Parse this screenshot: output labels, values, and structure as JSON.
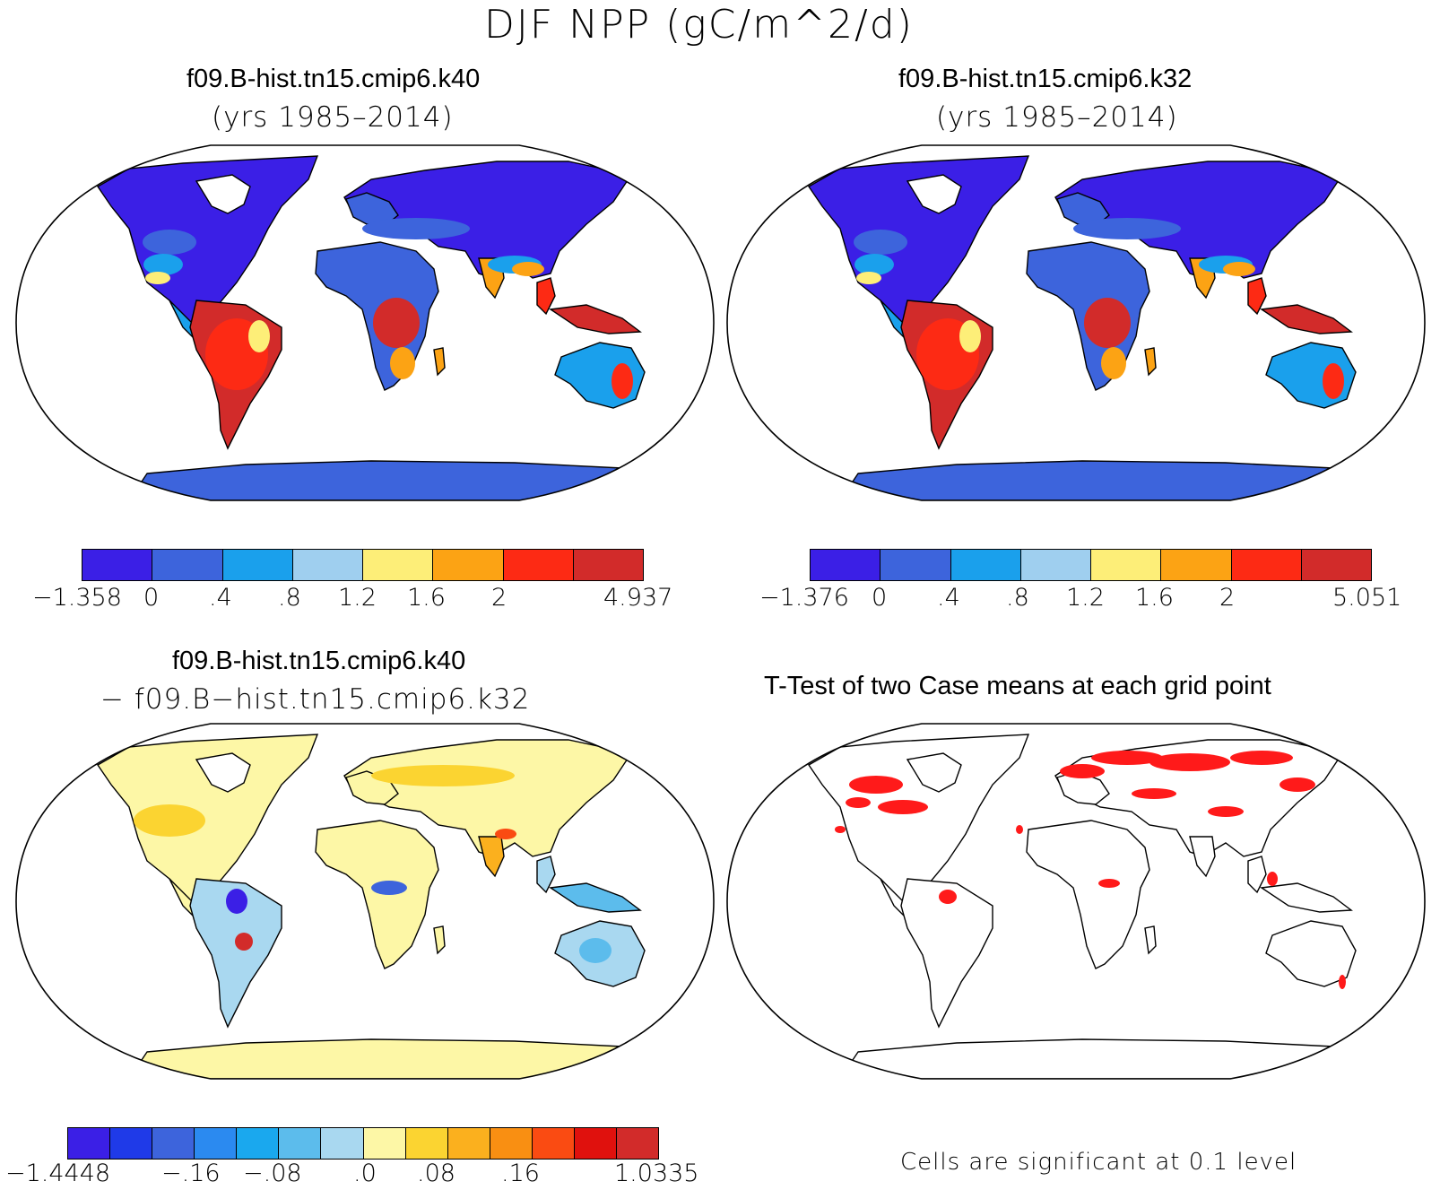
{
  "title": "DJF NPP (gC/m^2/d)",
  "panels": [
    {
      "title": "f09.B-hist.tn15.cmip6.k40",
      "subtitle": "(yrs 1985–2014)",
      "colorbar": {
        "colors": [
          "#3b1fe6",
          "#3d64dc",
          "#1aa0ec",
          "#9fcfef",
          "#fdee78",
          "#fca314",
          "#fd2a14",
          "#d22b2a"
        ],
        "ticks": [
          "−1.358",
          "0",
          ".4",
          ".8",
          "1.2",
          "1.6",
          "2",
          "4.937"
        ]
      }
    },
    {
      "title": "f09.B-hist.tn15.cmip6.k32",
      "subtitle": "(yrs 1985–2014)",
      "colorbar": {
        "colors": [
          "#3b1fe6",
          "#3d64dc",
          "#1aa0ec",
          "#9fcfef",
          "#fdee78",
          "#fca314",
          "#fd2a14",
          "#d22b2a"
        ],
        "ticks": [
          "−1.376",
          "0",
          ".4",
          ".8",
          "1.2",
          "1.6",
          "2",
          "5.051"
        ]
      }
    },
    {
      "title": "f09.B-hist.tn15.cmip6.k40",
      "subtitle": "− f09.B−hist.tn15.cmip6.k32",
      "colorbar": {
        "colors": [
          "#3b1fe6",
          "#1f3ae8",
          "#3d64dc",
          "#2b8af0",
          "#1aa8ee",
          "#5cbcec",
          "#a9d8f0",
          "#fdf7a6",
          "#fbd431",
          "#fbb01e",
          "#f98f12",
          "#fa4b12",
          "#e0110d",
          "#d22b2a"
        ],
        "ticks": [
          "−1.4448",
          "−.16",
          "−.08",
          ".0",
          ".08",
          ".16",
          "1.0335"
        ]
      }
    },
    {
      "title": "T-Test of two Case means at each grid point",
      "note": "Cells are significant at 0.1 level",
      "significant_color": "#ff1a1a"
    }
  ],
  "map_colors": {
    "ocean": "#ffffff",
    "outline": "#000000"
  }
}
